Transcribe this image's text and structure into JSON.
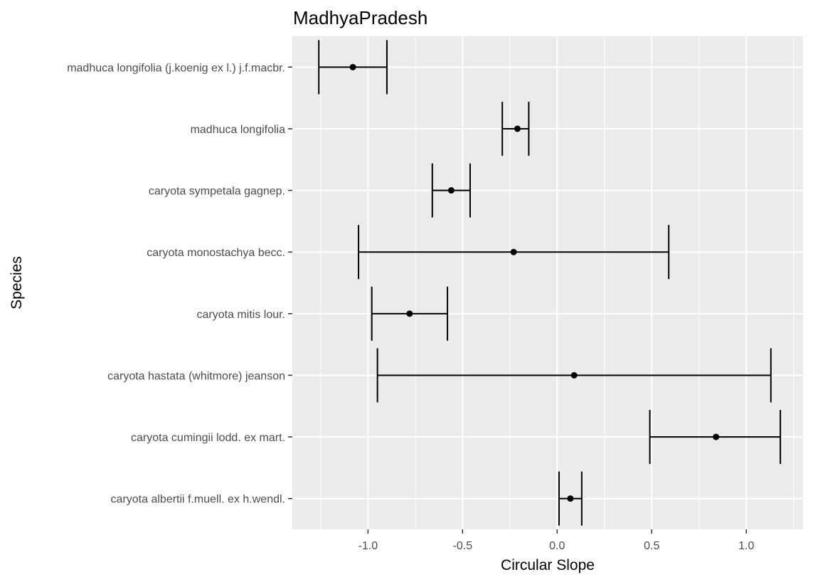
{
  "chart_data": {
    "type": "errorbar",
    "title": "MadhyaPradesh",
    "xlabel": "Circular Slope",
    "ylabel": "Species",
    "xlim": [
      -1.4,
      1.3
    ],
    "x_ticks": [
      -1.0,
      -0.5,
      0.0,
      0.5,
      1.0
    ],
    "x_tick_labels": [
      "-1.0",
      "-0.5",
      "0.0",
      "0.5",
      "1.0"
    ],
    "grid": true,
    "categories": [
      "caryota albertii f.muell. ex h.wendl.",
      "caryota cumingii lodd. ex mart.",
      "caryota hastata (whitmore) jeanson",
      "caryota mitis lour.",
      "caryota monostachya becc.",
      "caryota sympetala gagnep.",
      "madhuca longifolia",
      "madhuca longifolia (j.koenig ex l.) j.f.macbr."
    ],
    "estimates": [
      0.07,
      0.84,
      0.09,
      -0.78,
      -0.23,
      -0.56,
      -0.21,
      -1.08
    ],
    "lower": [
      0.01,
      0.49,
      -0.95,
      -0.98,
      -1.05,
      -0.66,
      -0.29,
      -1.26
    ],
    "upper": [
      0.13,
      1.18,
      1.13,
      -0.58,
      0.59,
      -0.46,
      -0.15,
      -0.9
    ],
    "colors": {
      "panel": "#ebebeb",
      "grid_major": "#ffffff",
      "tick": "#333333",
      "mark": "#000000"
    }
  }
}
